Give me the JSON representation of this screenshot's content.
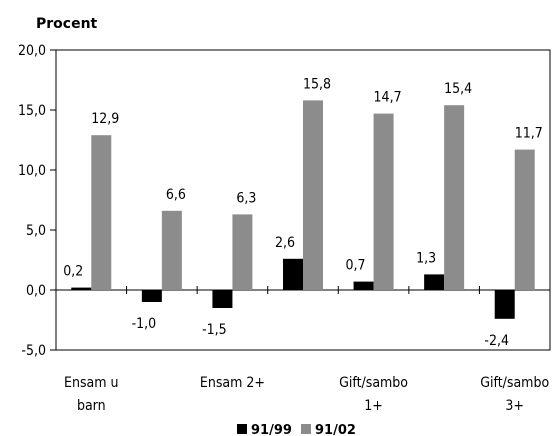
{
  "chart_data": {
    "type": "bar",
    "ylabel": "Procent",
    "ylim": [
      -5,
      20
    ],
    "yticks": [
      "-5,0",
      "0,0",
      "5,0",
      "10,0",
      "15,0",
      "20,0"
    ],
    "ytick_values": [
      -5,
      0,
      5,
      10,
      15,
      20
    ],
    "categories": [
      "Ensam u barn",
      "",
      "Ensam 2+",
      "",
      "Gift/sambo 1+",
      "",
      "Gift/sambo 3+"
    ],
    "category_label_lines": [
      [
        "Ensam u",
        "barn"
      ],
      [],
      [
        "Ensam 2+"
      ],
      [],
      [
        "Gift/sambo",
        "1+"
      ],
      [],
      [
        "Gift/sambo",
        "3+"
      ]
    ],
    "series": [
      {
        "name": "91/99",
        "color": "#000000",
        "values": [
          0.2,
          -1.0,
          -1.5,
          2.6,
          0.7,
          1.3,
          -2.4
        ],
        "labels": [
          "0,2",
          "-1,0",
          "-1,5",
          "2,6",
          "0,7",
          "1,3",
          "-2,4"
        ]
      },
      {
        "name": "91/02",
        "color": "#8c8c8c",
        "values": [
          12.9,
          6.6,
          6.3,
          15.8,
          14.7,
          15.4,
          11.7
        ],
        "labels": [
          "12,9",
          "6,6",
          "6,3",
          "15,8",
          "14,7",
          "15,4",
          "11,7"
        ]
      }
    ],
    "legend_position": "bottom",
    "grid": false
  }
}
